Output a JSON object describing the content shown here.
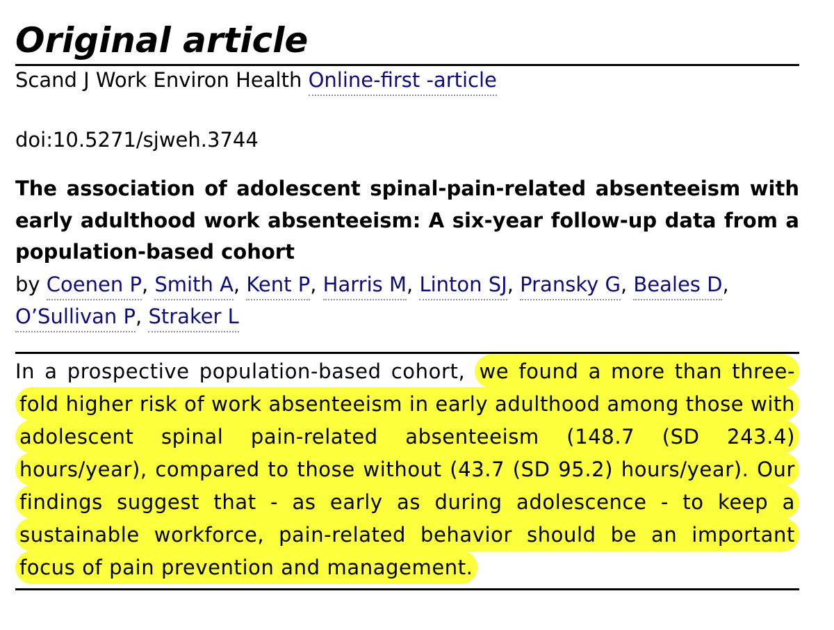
{
  "heading": "Original article",
  "journal": {
    "name": "Scand J Work Environ Health",
    "link_label": "Online-first -article"
  },
  "doi": "doi:10.5271/sjweh.3744",
  "article_title": "The association of adolescent spinal-pain-related absenteeism with early adulthood work absenteeism: A six-year follow-up data from a population-based cohort",
  "byline": {
    "prefix": "by",
    "authors": [
      "Coenen P",
      "Smith A",
      "Kent P",
      "Harris M",
      "Linton SJ",
      "Pransky G",
      "Beales D",
      "O’Sullivan P",
      "Straker L"
    ]
  },
  "abstract": {
    "plain": "In a prospective population-based cohort, ",
    "highlighted": "we found a more than three-fold higher risk of work absenteeism in early adulthood among those with adolescent spinal pain-related absenteeism (148.7 (SD 243.4) hours/year), compared to those without (43.7 (SD 95.2) hours/year). Our findings suggest that - as early as during adolescence - to keep a sustainable workforce, pain-related behavior should be an important focus of pain prevention and management.",
    "highlight_color": "#fbff3c"
  },
  "colors": {
    "link": "#0d0d7a",
    "rule": "#000000"
  }
}
